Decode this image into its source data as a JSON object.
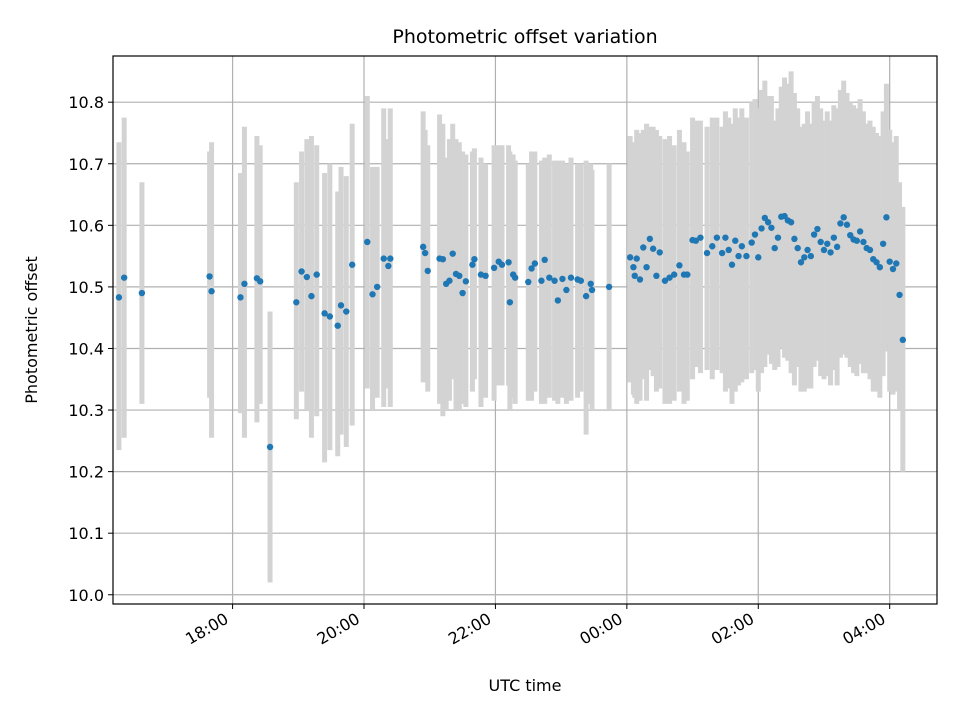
{
  "chart_data": {
    "type": "scatter",
    "title": "Photometric offset variation",
    "xlabel": "UTC time",
    "ylabel": "Photometric offset",
    "grid": true,
    "x_tick_labels": [
      "18:00",
      "20:00",
      "22:00",
      "00:00",
      "02:00",
      "04:00"
    ],
    "x_tick_values": [
      18.0,
      20.0,
      22.0,
      24.0,
      26.0,
      28.0
    ],
    "y_tick_labels": [
      "10.0",
      "10.1",
      "10.2",
      "10.3",
      "10.4",
      "10.5",
      "10.6",
      "10.7",
      "10.8"
    ],
    "y_tick_values": [
      10.0,
      10.1,
      10.2,
      10.3,
      10.4,
      10.5,
      10.6,
      10.7,
      10.8
    ],
    "xlim_hours": [
      16.18,
      28.72
    ],
    "ylim": [
      9.985,
      10.875
    ],
    "marker_color": "#1f77b4",
    "errorbar_color": "#d3d3d3",
    "series": [
      {
        "points": [
          [
            16.27,
            10.483,
            10.235,
            10.735
          ],
          [
            16.35,
            10.515,
            10.255,
            10.775
          ],
          [
            16.62,
            10.49,
            10.31,
            10.67
          ],
          [
            17.65,
            10.517,
            10.32,
            10.72
          ],
          [
            17.68,
            10.493,
            10.255,
            10.735
          ],
          [
            18.12,
            10.483,
            10.295,
            10.685
          ],
          [
            18.18,
            10.505,
            10.255,
            10.76
          ],
          [
            18.37,
            10.514,
            10.28,
            10.745
          ],
          [
            18.42,
            10.509,
            10.31,
            10.73
          ],
          [
            18.57,
            10.24,
            10.02,
            10.46
          ],
          [
            18.97,
            10.475,
            10.285,
            10.67
          ],
          [
            19.05,
            10.525,
            10.33,
            10.72
          ],
          [
            19.13,
            10.516,
            10.3,
            10.74
          ],
          [
            19.2,
            10.485,
            10.255,
            10.745
          ],
          [
            19.28,
            10.52,
            10.29,
            10.73
          ],
          [
            19.4,
            10.457,
            10.215,
            10.685
          ],
          [
            19.48,
            10.452,
            10.235,
            10.7
          ],
          [
            19.6,
            10.437,
            10.225,
            10.655
          ],
          [
            19.65,
            10.47,
            10.26,
            10.695
          ],
          [
            19.73,
            10.46,
            10.24,
            10.68
          ],
          [
            19.82,
            10.536,
            10.275,
            10.765
          ],
          [
            20.05,
            10.573,
            10.335,
            10.81
          ],
          [
            20.13,
            10.488,
            10.3,
            10.695
          ],
          [
            20.2,
            10.5,
            10.32,
            10.695
          ],
          [
            20.3,
            10.546,
            10.305,
            10.79
          ],
          [
            20.4,
            10.546,
            10.305,
            10.79
          ],
          [
            20.37,
            10.534,
            10.335,
            10.74
          ],
          [
            20.9,
            10.565,
            10.345,
            10.785
          ],
          [
            20.93,
            10.555,
            10.365,
            10.755
          ],
          [
            20.97,
            10.526,
            10.33,
            10.73
          ],
          [
            21.15,
            10.546,
            10.31,
            10.78
          ],
          [
            21.2,
            10.545,
            10.29,
            10.765
          ],
          [
            21.25,
            10.505,
            10.3,
            10.71
          ],
          [
            21.3,
            10.51,
            10.315,
            10.74
          ],
          [
            21.35,
            10.554,
            10.35,
            10.765
          ],
          [
            21.4,
            10.521,
            10.3,
            10.74
          ],
          [
            21.45,
            10.518,
            10.3,
            10.735
          ],
          [
            21.5,
            10.49,
            10.31,
            10.72
          ],
          [
            21.55,
            10.509,
            10.305,
            10.715
          ],
          [
            21.65,
            10.536,
            10.33,
            10.72
          ],
          [
            21.68,
            10.545,
            10.35,
            10.725
          ],
          [
            21.78,
            10.52,
            10.305,
            10.71
          ],
          [
            21.85,
            10.518,
            10.32,
            10.7
          ],
          [
            21.98,
            10.531,
            10.315,
            10.73
          ],
          [
            22.05,
            10.541,
            10.34,
            10.73
          ],
          [
            22.1,
            10.536,
            10.34,
            10.73
          ],
          [
            22.2,
            10.54,
            10.34,
            10.73
          ],
          [
            22.22,
            10.475,
            10.3,
            10.72
          ],
          [
            22.27,
            10.52,
            10.32,
            10.715
          ],
          [
            22.3,
            10.515,
            10.31,
            10.705
          ],
          [
            22.5,
            10.508,
            10.315,
            10.7
          ],
          [
            22.55,
            10.53,
            10.315,
            10.72
          ],
          [
            22.6,
            10.538,
            10.33,
            10.72
          ],
          [
            22.7,
            10.51,
            10.31,
            10.705
          ],
          [
            22.75,
            10.544,
            10.31,
            10.71
          ],
          [
            22.82,
            10.515,
            10.32,
            10.715
          ],
          [
            22.9,
            10.51,
            10.315,
            10.705
          ],
          [
            22.95,
            10.478,
            10.31,
            10.705
          ],
          [
            23.02,
            10.513,
            10.32,
            10.705
          ],
          [
            23.08,
            10.495,
            10.31,
            10.7
          ],
          [
            23.15,
            10.515,
            10.315,
            10.71
          ],
          [
            23.25,
            10.512,
            10.32,
            10.7
          ],
          [
            23.3,
            10.51,
            10.33,
            10.7
          ],
          [
            23.38,
            10.485,
            10.26,
            10.705
          ],
          [
            23.45,
            10.505,
            10.31,
            10.7
          ],
          [
            23.47,
            10.495,
            10.3,
            10.69
          ],
          [
            23.73,
            10.5,
            10.3,
            10.7
          ],
          [
            24.05,
            10.548,
            10.345,
            10.745
          ],
          [
            24.1,
            10.532,
            10.325,
            10.735
          ],
          [
            24.12,
            10.518,
            10.32,
            10.72
          ],
          [
            24.15,
            10.546,
            10.31,
            10.755
          ],
          [
            24.2,
            10.512,
            10.315,
            10.75
          ],
          [
            24.25,
            10.564,
            10.35,
            10.755
          ],
          [
            24.3,
            10.532,
            10.315,
            10.765
          ],
          [
            24.35,
            10.578,
            10.365,
            10.76
          ],
          [
            24.4,
            10.562,
            10.355,
            10.76
          ],
          [
            24.45,
            10.518,
            10.33,
            10.755
          ],
          [
            24.5,
            10.556,
            10.335,
            10.745
          ],
          [
            24.58,
            10.51,
            10.31,
            10.74
          ],
          [
            24.65,
            10.515,
            10.31,
            10.745
          ],
          [
            24.72,
            10.52,
            10.315,
            10.73
          ],
          [
            24.8,
            10.535,
            10.33,
            10.755
          ],
          [
            24.87,
            10.52,
            10.31,
            10.735
          ],
          [
            24.92,
            10.52,
            10.315,
            10.72
          ],
          [
            25.0,
            10.576,
            10.35,
            10.775
          ],
          [
            25.05,
            10.575,
            10.37,
            10.77
          ],
          [
            25.12,
            10.58,
            10.36,
            10.77
          ],
          [
            25.22,
            10.555,
            10.365,
            10.76
          ],
          [
            25.3,
            10.566,
            10.35,
            10.775
          ],
          [
            25.37,
            10.58,
            10.365,
            10.775
          ],
          [
            25.45,
            10.555,
            10.36,
            10.76
          ],
          [
            25.5,
            10.58,
            10.33,
            10.785
          ],
          [
            25.55,
            10.56,
            10.335,
            10.775
          ],
          [
            25.6,
            10.536,
            10.31,
            10.765
          ],
          [
            25.65,
            10.575,
            10.33,
            10.79
          ],
          [
            25.7,
            10.55,
            10.34,
            10.775
          ],
          [
            25.75,
            10.566,
            10.345,
            10.79
          ],
          [
            25.82,
            10.55,
            10.35,
            10.775
          ],
          [
            25.9,
            10.572,
            10.36,
            10.8
          ],
          [
            25.95,
            10.585,
            10.365,
            10.805
          ],
          [
            26.0,
            10.548,
            10.33,
            10.79
          ],
          [
            26.05,
            10.595,
            10.36,
            10.82
          ],
          [
            26.1,
            10.612,
            10.37,
            10.835
          ],
          [
            26.15,
            10.605,
            10.39,
            10.81
          ],
          [
            26.2,
            10.596,
            10.375,
            10.81
          ],
          [
            26.25,
            10.563,
            10.365,
            10.77
          ],
          [
            26.3,
            10.58,
            10.37,
            10.79
          ],
          [
            26.35,
            10.614,
            10.4,
            10.825
          ],
          [
            26.4,
            10.615,
            10.385,
            10.84
          ],
          [
            26.45,
            10.608,
            10.38,
            10.83
          ],
          [
            26.5,
            10.605,
            10.36,
            10.85
          ],
          [
            26.55,
            10.578,
            10.34,
            10.815
          ],
          [
            26.6,
            10.563,
            10.37,
            10.79
          ],
          [
            26.65,
            10.54,
            10.33,
            10.76
          ],
          [
            26.7,
            10.548,
            10.33,
            10.765
          ],
          [
            26.75,
            10.56,
            10.335,
            10.785
          ],
          [
            26.8,
            10.55,
            10.335,
            10.765
          ],
          [
            26.85,
            10.585,
            10.37,
            10.8
          ],
          [
            26.9,
            10.594,
            10.38,
            10.81
          ],
          [
            26.95,
            10.573,
            10.355,
            10.79
          ],
          [
            27.0,
            10.56,
            10.35,
            10.77
          ],
          [
            27.05,
            10.57,
            10.355,
            10.785
          ],
          [
            27.1,
            10.556,
            10.34,
            10.77
          ],
          [
            27.15,
            10.58,
            10.365,
            10.795
          ],
          [
            27.2,
            10.565,
            10.34,
            10.79
          ],
          [
            27.25,
            10.603,
            10.385,
            10.82
          ],
          [
            27.3,
            10.613,
            10.39,
            10.835
          ],
          [
            27.35,
            10.601,
            10.385,
            10.815
          ],
          [
            27.4,
            10.584,
            10.37,
            10.8
          ],
          [
            27.45,
            10.577,
            10.36,
            10.795
          ],
          [
            27.5,
            10.575,
            10.355,
            10.79
          ],
          [
            27.55,
            10.59,
            10.375,
            10.805
          ],
          [
            27.6,
            10.573,
            10.36,
            10.785
          ],
          [
            27.65,
            10.563,
            10.36,
            10.765
          ],
          [
            27.7,
            10.56,
            10.35,
            10.77
          ],
          [
            27.75,
            10.545,
            10.33,
            10.76
          ],
          [
            27.8,
            10.54,
            10.33,
            10.75
          ],
          [
            27.85,
            10.532,
            10.32,
            10.745
          ],
          [
            27.9,
            10.57,
            10.355,
            10.785
          ],
          [
            27.95,
            10.613,
            10.395,
            10.83
          ],
          [
            28.0,
            10.541,
            10.33,
            10.755
          ],
          [
            28.05,
            10.529,
            10.325,
            10.735
          ],
          [
            28.1,
            10.538,
            10.33,
            10.745
          ],
          [
            28.15,
            10.487,
            10.3,
            10.67
          ],
          [
            28.2,
            10.414,
            10.2,
            10.63
          ]
        ]
      }
    ]
  }
}
